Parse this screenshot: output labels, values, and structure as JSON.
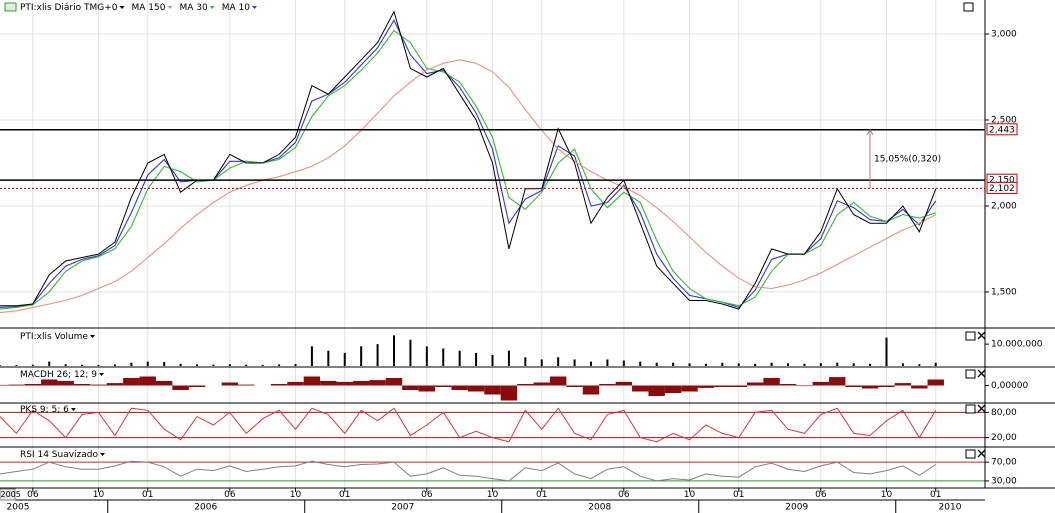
{
  "chart_data": [
    {
      "type": "line",
      "x": [
        "2005-04",
        "2005-05",
        "2005-06",
        "2005-07",
        "2005-08",
        "2005-09",
        "2005-10",
        "2005-11",
        "2005-12",
        "2006-01",
        "2006-02",
        "2006-03",
        "2006-04",
        "2006-05",
        "2006-06",
        "2006-07",
        "2006-08",
        "2006-09",
        "2006-10",
        "2006-11",
        "2006-12",
        "2007-01",
        "2007-02",
        "2007-03",
        "2007-04",
        "2007-05",
        "2007-06",
        "2007-07",
        "2007-08",
        "2007-09",
        "2007-10",
        "2007-11",
        "2007-12",
        "2008-01",
        "2008-02",
        "2008-03",
        "2008-04",
        "2008-05",
        "2008-06",
        "2008-07",
        "2008-08",
        "2008-09",
        "2008-10",
        "2008-11",
        "2008-12",
        "2009-01",
        "2009-02",
        "2009-03",
        "2009-04",
        "2009-05",
        "2009-06",
        "2009-07",
        "2009-08",
        "2009-09",
        "2009-10",
        "2009-11",
        "2009-12",
        "2010-01"
      ],
      "series": [
        {
          "name": "PTI:xlis Diário TMG+0",
          "color": "#000000",
          "values": [
            1420,
            1420,
            1430,
            1600,
            1680,
            1700,
            1720,
            1790,
            2050,
            2250,
            2300,
            2080,
            2150,
            2150,
            2300,
            2250,
            2250,
            2300,
            2400,
            2700,
            2650,
            2750,
            2850,
            2950,
            3130,
            2800,
            2750,
            2800,
            2650,
            2500,
            2250,
            1750,
            2100,
            2100,
            2450,
            2250,
            1900,
            2050,
            2150,
            1900,
            1650,
            1550,
            1450,
            1450,
            1430,
            1400,
            1550,
            1750,
            1720,
            1720,
            1850,
            2100,
            1950,
            1900,
            1900,
            2000,
            1850,
            2100
          ]
        },
        {
          "name": "MA 150",
          "color": "#e8937a",
          "values": [
            1380,
            1390,
            1410,
            1430,
            1450,
            1480,
            1520,
            1560,
            1620,
            1700,
            1780,
            1870,
            1950,
            2020,
            2080,
            2120,
            2150,
            2170,
            2200,
            2230,
            2280,
            2350,
            2440,
            2540,
            2640,
            2720,
            2790,
            2830,
            2850,
            2830,
            2780,
            2690,
            2560,
            2440,
            2330,
            2260,
            2200,
            2150,
            2110,
            2060,
            1990,
            1910,
            1820,
            1730,
            1650,
            1580,
            1530,
            1520,
            1540,
            1570,
            1610,
            1660,
            1710,
            1760,
            1810,
            1860,
            1900,
            1950
          ]
        },
        {
          "name": "MA 30",
          "color": "#33bb33",
          "values": [
            1400,
            1410,
            1425,
            1500,
            1620,
            1680,
            1705,
            1750,
            1880,
            2100,
            2230,
            2200,
            2140,
            2150,
            2220,
            2260,
            2250,
            2270,
            2340,
            2520,
            2640,
            2700,
            2790,
            2890,
            3020,
            2950,
            2800,
            2780,
            2720,
            2580,
            2400,
            2050,
            1980,
            2080,
            2250,
            2330,
            2100,
            1990,
            2080,
            2020,
            1800,
            1620,
            1520,
            1460,
            1440,
            1420,
            1470,
            1620,
            1720,
            1720,
            1770,
            1950,
            2020,
            1940,
            1910,
            1950,
            1930,
            1960
          ]
        },
        {
          "name": "MA 10",
          "color": "#3333cc",
          "values": [
            1410,
            1415,
            1430,
            1550,
            1650,
            1690,
            1710,
            1770,
            1960,
            2180,
            2270,
            2140,
            2150,
            2150,
            2260,
            2260,
            2250,
            2280,
            2370,
            2610,
            2650,
            2720,
            2820,
            2920,
            3080,
            2880,
            2770,
            2790,
            2690,
            2540,
            2330,
            1900,
            2040,
            2090,
            2350,
            2290,
            2000,
            2020,
            2120,
            1960,
            1720,
            1580,
            1480,
            1460,
            1440,
            1410,
            1510,
            1690,
            1720,
            1720,
            1810,
            2030,
            1990,
            1920,
            1910,
            1980,
            1890,
            2030
          ]
        }
      ],
      "xlim": [
        "2005-04",
        "2010-04"
      ],
      "xticks": [
        {
          "value": "2005-06",
          "label": "06"
        },
        {
          "value": "2005-10",
          "label": "10"
        },
        {
          "value": "2006-01",
          "label": "01"
        },
        {
          "value": "2006-06",
          "label": "06"
        },
        {
          "value": "2006-10",
          "label": "10"
        },
        {
          "value": "2007-01",
          "label": "01"
        },
        {
          "value": "2007-06",
          "label": "06"
        },
        {
          "value": "2007-10",
          "label": "10"
        },
        {
          "value": "2008-01",
          "label": "01"
        },
        {
          "value": "2008-06",
          "label": "06"
        },
        {
          "value": "2008-10",
          "label": "10"
        },
        {
          "value": "2009-01",
          "label": "01"
        },
        {
          "value": "2009-06",
          "label": "06"
        },
        {
          "value": "2009-10",
          "label": "10"
        },
        {
          "value": "2010-01",
          "label": "01"
        }
      ],
      "years": [
        "2005",
        "2006",
        "2007",
        "2008",
        "2009",
        "2010"
      ],
      "cursor_label": "2005",
      "ylim": [
        1296,
        3198
      ],
      "yticks": [
        {
          "value": 1500,
          "label": "1,500"
        },
        {
          "value": 2000,
          "label": "2,000"
        },
        {
          "value": 2500,
          "label": "2,500"
        },
        {
          "value": 3000,
          "label": "3,000"
        }
      ],
      "grid": true,
      "levels": [
        {
          "value": 2443,
          "label": "2,443",
          "color": "#000000"
        },
        {
          "value": 2150,
          "label": "2,150",
          "color": "#000000"
        },
        {
          "value": 2102,
          "label": "2,102",
          "color": "#cc0000",
          "dashed": true
        }
      ],
      "annotation": "15,05%(0,320)"
    },
    {
      "type": "bar",
      "title": "PTI:xlis Volume",
      "color": "#000000",
      "values": [
        300000,
        400000,
        600000,
        2000000,
        800000,
        600000,
        500000,
        700000,
        1500000,
        2000000,
        1800000,
        1000000,
        700000,
        600000,
        800000,
        600000,
        500000,
        700000,
        900000,
        9000000,
        7000000,
        6000000,
        9000000,
        10000000,
        14000000,
        12000000,
        9000000,
        8000000,
        7000000,
        6000000,
        5000000,
        7000000,
        4000000,
        3000000,
        4000000,
        3000000,
        2000000,
        3000000,
        2500000,
        2000000,
        1500000,
        1500000,
        1200000,
        1000000,
        1500000,
        1200000,
        1000000,
        1500000,
        1200000,
        1000000,
        1300000,
        1500000,
        1200000,
        1000000,
        13000000,
        1200000,
        800000,
        1500000
      ],
      "ylim": [
        0,
        16000000
      ],
      "yticks": [
        {
          "value": 10000000,
          "label": "10.000.000"
        }
      ]
    },
    {
      "type": "bar",
      "title": "MACDH 26; 12; 9",
      "color": "#8b0a0a",
      "values": [
        2,
        3,
        5,
        20,
        15,
        5,
        3,
        8,
        25,
        30,
        15,
        -15,
        -5,
        0,
        10,
        3,
        0,
        5,
        12,
        30,
        15,
        12,
        15,
        18,
        25,
        -15,
        -20,
        -5,
        -15,
        -20,
        -30,
        -50,
        5,
        10,
        30,
        -5,
        -30,
        5,
        12,
        -20,
        -35,
        -25,
        -20,
        -8,
        -5,
        -5,
        10,
        25,
        5,
        -2,
        12,
        28,
        -5,
        -10,
        -5,
        8,
        -10,
        20
      ],
      "ylim": [
        -55,
        55
      ],
      "yticks": [
        {
          "value": 0,
          "label": "0,00000"
        }
      ]
    },
    {
      "type": "line",
      "title": "PKS 9; 5; 6",
      "color": "#d23a3a",
      "values": [
        70,
        30,
        85,
        60,
        20,
        75,
        80,
        25,
        90,
        85,
        40,
        15,
        70,
        50,
        80,
        30,
        65,
        85,
        40,
        90,
        75,
        30,
        85,
        60,
        90,
        25,
        50,
        80,
        20,
        35,
        20,
        10,
        85,
        40,
        90,
        30,
        15,
        75,
        85,
        20,
        10,
        30,
        15,
        50,
        30,
        20,
        80,
        85,
        40,
        30,
        75,
        90,
        30,
        25,
        60,
        85,
        20,
        85
      ],
      "ylim": [
        0,
        100
      ],
      "yticks": [
        {
          "value": 80,
          "label": "80,00"
        },
        {
          "value": 20,
          "label": "20,00"
        }
      ],
      "tick_colors": [
        "#b01010",
        "#b01010"
      ]
    },
    {
      "type": "line",
      "title": "RSI 14 Suavizado",
      "color": "#808080",
      "values": [
        45,
        50,
        55,
        70,
        60,
        55,
        55,
        62,
        72,
        70,
        60,
        40,
        55,
        52,
        62,
        50,
        55,
        60,
        62,
        72,
        65,
        60,
        65,
        66,
        70,
        40,
        45,
        58,
        42,
        40,
        35,
        30,
        58,
        52,
        68,
        45,
        35,
        55,
        60,
        40,
        30,
        35,
        32,
        45,
        40,
        38,
        60,
        68,
        55,
        50,
        62,
        70,
        48,
        45,
        52,
        62,
        42,
        65
      ],
      "ylim": [
        17,
        98
      ],
      "yticks": [
        {
          "value": 70,
          "label": "70,00"
        },
        {
          "value": 30,
          "label": "30,00"
        }
      ],
      "tick_colors": [
        "#cc2020",
        "#20a020"
      ]
    }
  ]
}
